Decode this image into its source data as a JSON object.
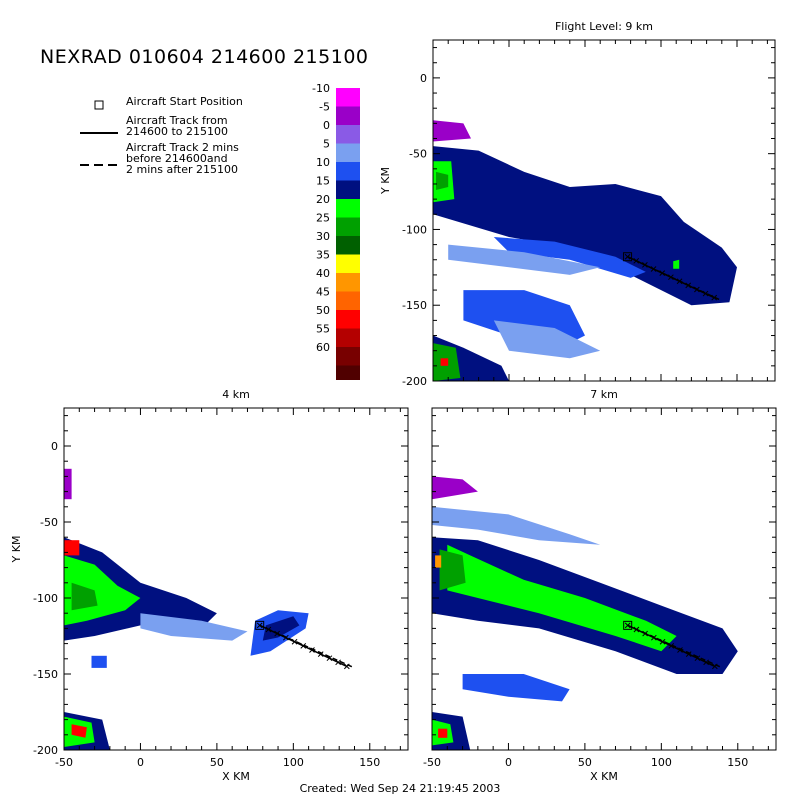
{
  "title": "NEXRAD 010604 214600 215100",
  "legend": {
    "start_label": "Aircraft Start Position",
    "track_label": "Aircraft Track from\n214600 to 215100",
    "extended_label": "Aircraft Track 2 mins\nbefore 214600and\n2 mins after 215100"
  },
  "colorbar": {
    "labels": [
      "-10",
      "-5",
      "0",
      "5",
      "10",
      "15",
      "20",
      "25",
      "30",
      "35",
      "40",
      "45",
      "50",
      "55",
      "60"
    ],
    "colors": [
      "#ff00ff",
      "#9a00c8",
      "#8a5ae6",
      "#7aa0f0",
      "#1e50f0",
      "#001080",
      "#00ff00",
      "#00a000",
      "#006000",
      "#ffff00",
      "#ff9600",
      "#ff6400",
      "#ff0000",
      "#b40000",
      "#780000",
      "#500000"
    ]
  },
  "footer": "Created: Wed Sep 24 21:19:45 2003",
  "chart_data": [
    {
      "type": "heatmap",
      "title": "Flight Level: 9 km",
      "xlabel": "",
      "ylabel": "Y KM",
      "xlim": [
        -50,
        175
      ],
      "ylim": [
        -200,
        25
      ],
      "yticks": [
        "0",
        "-50",
        "-100",
        "-150",
        "-200"
      ],
      "xticks": [],
      "track": {
        "start": [
          78,
          -118
        ],
        "end": [
          135,
          -145
        ]
      },
      "extended_track": {
        "start": [
          78,
          -118
        ],
        "end": [
          140,
          -147
        ]
      }
    },
    {
      "type": "heatmap",
      "title": "4 km",
      "xlabel": "X KM",
      "ylabel": "Y KM",
      "xlim": [
        -50,
        175
      ],
      "ylim": [
        -200,
        25
      ],
      "xticks": [
        "-50",
        "0",
        "50",
        "100",
        "150"
      ],
      "yticks": [
        "0",
        "-50",
        "-100",
        "-150",
        "-200"
      ],
      "track": {
        "start": [
          78,
          -118
        ],
        "end": [
          135,
          -145
        ]
      },
      "extended_track": {
        "start": [
          78,
          -118
        ],
        "end": [
          140,
          -146
        ]
      }
    },
    {
      "type": "heatmap",
      "title": "7 km",
      "xlabel": "X KM",
      "ylabel": "",
      "xlim": [
        -50,
        175
      ],
      "ylim": [
        -200,
        25
      ],
      "xticks": [
        "-50",
        "0",
        "50",
        "100",
        "150"
      ],
      "yticks": [],
      "track": {
        "start": [
          78,
          -118
        ],
        "end": [
          135,
          -145
        ]
      },
      "extended_track": {
        "start": [
          78,
          -118
        ],
        "end": [
          140,
          -146
        ]
      }
    }
  ]
}
